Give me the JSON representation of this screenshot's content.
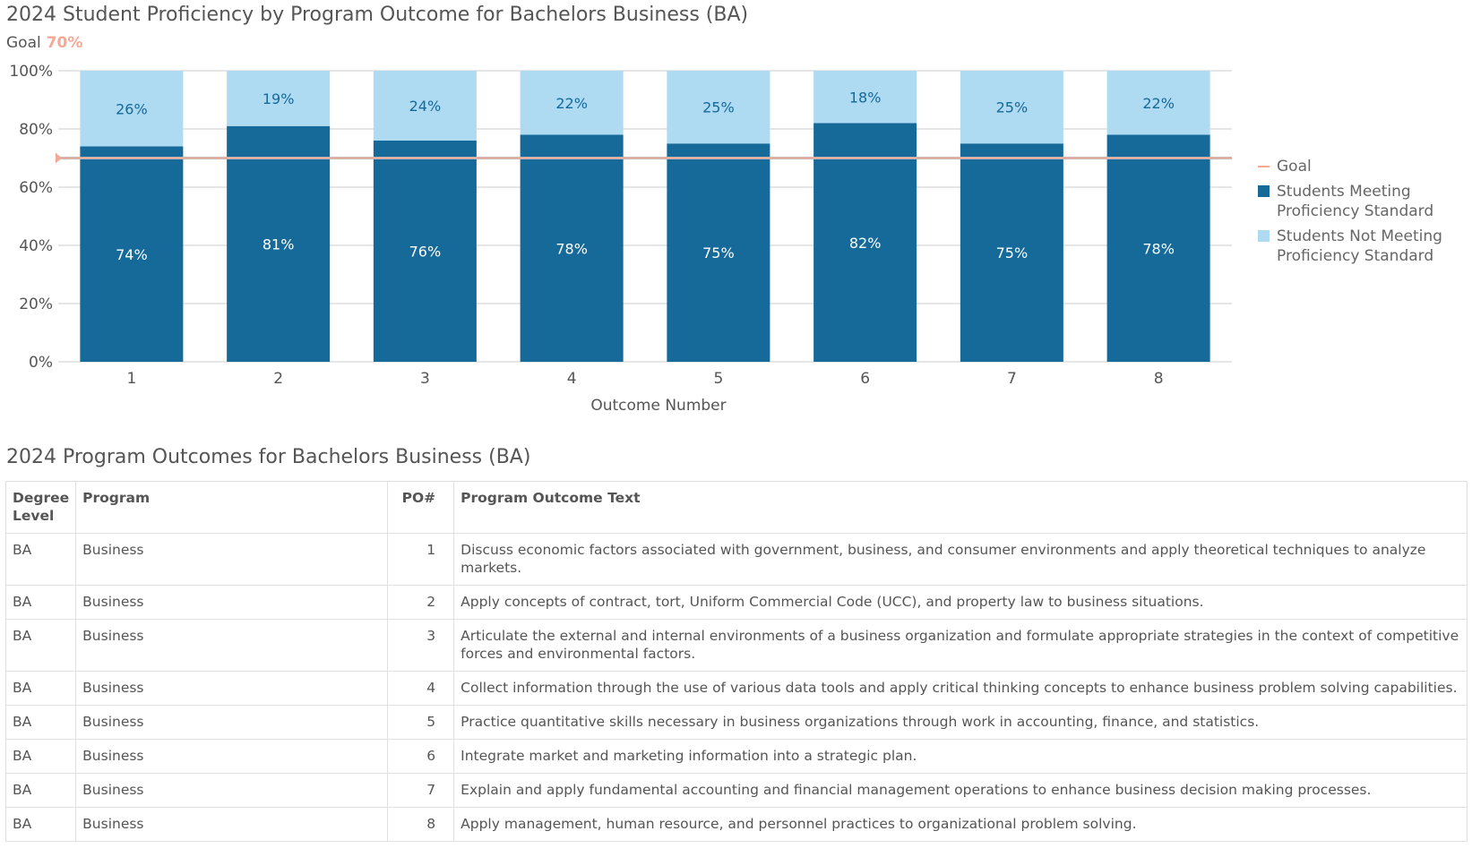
{
  "title": "2024 Student Proficiency by Program Outcome for Bachelors Business (BA)",
  "goal": {
    "label": "Goal",
    "value": "70%"
  },
  "chart_data": {
    "type": "bar",
    "stacked": true,
    "title": "2024 Student Proficiency by Program Outcome for Bachelors Business (BA)",
    "xlabel": "Outcome Number",
    "ylabel": "",
    "categories": [
      "1",
      "2",
      "3",
      "4",
      "5",
      "6",
      "7",
      "8"
    ],
    "ylim": [
      0,
      100
    ],
    "yticks": [
      "0%",
      "20%",
      "40%",
      "60%",
      "80%",
      "100%"
    ],
    "goal": 70,
    "series": [
      {
        "name": "Students Meeting Proficiency Standard",
        "values": [
          74,
          81,
          76,
          78,
          75,
          82,
          75,
          78
        ],
        "color": "#156a99",
        "labels": [
          "74%",
          "81%",
          "76%",
          "78%",
          "75%",
          "82%",
          "75%",
          "78%"
        ]
      },
      {
        "name": "Students Not Meeting Proficiency Standard",
        "values": [
          26,
          19,
          24,
          22,
          25,
          18,
          25,
          22
        ],
        "color": "#aedaf2",
        "labels": [
          "26%",
          "19%",
          "24%",
          "22%",
          "25%",
          "18%",
          "25%",
          "22%"
        ]
      }
    ],
    "goal_color": "#f4a896",
    "grid": true,
    "legend": "right"
  },
  "legend": {
    "goal": "Goal",
    "meeting": [
      "Students Meeting",
      "Proficiency Standard"
    ],
    "not_meeting": [
      "Students Not Meeting",
      "Proficiency Standard"
    ]
  },
  "table": {
    "title": "2024 Program Outcomes for Bachelors Business (BA)",
    "headers": [
      "Degree Level",
      "Program",
      "PO#",
      "Program Outcome Text"
    ],
    "rows": [
      [
        "BA",
        "Business",
        "1",
        "Discuss economic factors associated with government, business, and consumer environments and apply theoretical techniques to analyze markets."
      ],
      [
        "BA",
        "Business",
        "2",
        "Apply concepts of contract, tort, Uniform Commercial Code (UCC), and property law to business situations."
      ],
      [
        "BA",
        "Business",
        "3",
        "Articulate the external and internal environments of a business organization and formulate appropriate strategies in the context of competitive forces and environmental factors."
      ],
      [
        "BA",
        "Business",
        "4",
        "Collect information through the use of various data tools and apply critical thinking concepts to enhance business problem solving capabilities."
      ],
      [
        "BA",
        "Business",
        "5",
        "Practice quantitative skills necessary in business organizations through work in accounting, finance, and statistics."
      ],
      [
        "BA",
        "Business",
        "6",
        "Integrate market and marketing information into a strategic plan."
      ],
      [
        "BA",
        "Business",
        "7",
        "Explain and apply fundamental accounting and financial management operations to enhance business decision making processes."
      ],
      [
        "BA",
        "Business",
        "8",
        "Apply management, human resource, and personnel practices to organizational problem solving."
      ]
    ]
  }
}
